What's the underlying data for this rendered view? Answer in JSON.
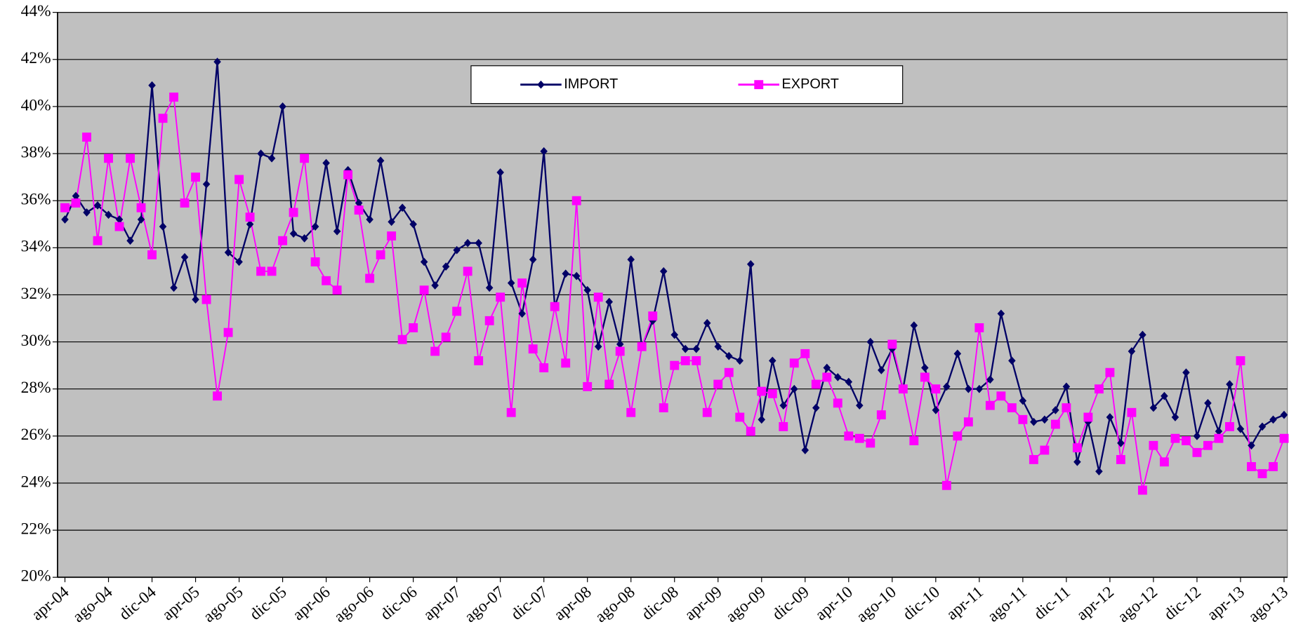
{
  "chart_data": {
    "type": "line",
    "categories": [
      "apr-04",
      null,
      null,
      null,
      "ago-04",
      null,
      null,
      null,
      "dic-04",
      null,
      null,
      null,
      "apr-05",
      null,
      null,
      null,
      "ago-05",
      null,
      null,
      null,
      "dic-05",
      null,
      null,
      null,
      "apr-06",
      null,
      null,
      null,
      "ago-06",
      null,
      null,
      null,
      "dic-06",
      null,
      null,
      null,
      "apr-07",
      null,
      null,
      null,
      "ago-07",
      null,
      null,
      null,
      "dic-07",
      null,
      null,
      null,
      "apr-08",
      null,
      null,
      null,
      "ago-08",
      null,
      null,
      null,
      "dic-08",
      null,
      null,
      null,
      "apr-09",
      null,
      null,
      null,
      "ago-09",
      null,
      null,
      null,
      "dic-09",
      null,
      null,
      null,
      "apr-10",
      null,
      null,
      null,
      "ago-10",
      null,
      null,
      null,
      "dic-10",
      null,
      null,
      null,
      "apr-11",
      null,
      null,
      null,
      "ago-11",
      null,
      null,
      null,
      "dic-11",
      null,
      null,
      null,
      "apr-12",
      null,
      null,
      null,
      "ago-12",
      null,
      null,
      null,
      "dic-12",
      null,
      null,
      null,
      "apr-13",
      null,
      null,
      null,
      "ago-13"
    ],
    "series": [
      {
        "name": "IMPORT",
        "color": "#000066",
        "marker": "diamond",
        "values": [
          35.2,
          36.2,
          35.5,
          35.8,
          35.4,
          35.2,
          34.3,
          35.2,
          40.9,
          34.9,
          32.3,
          33.6,
          31.8,
          36.7,
          41.9,
          33.8,
          33.4,
          35.0,
          38.0,
          37.8,
          40.0,
          34.6,
          34.4,
          34.9,
          37.6,
          34.7,
          37.3,
          35.9,
          35.2,
          37.7,
          35.1,
          35.7,
          35.0,
          33.4,
          32.4,
          33.2,
          33.9,
          34.2,
          34.2,
          32.3,
          37.2,
          32.5,
          31.2,
          33.5,
          38.1,
          31.5,
          32.9,
          32.8,
          32.2,
          29.8,
          31.7,
          29.9,
          33.5,
          29.8,
          30.9,
          33.0,
          30.3,
          29.7,
          29.7,
          30.8,
          29.8,
          29.4,
          29.2,
          33.3,
          26.7,
          29.2,
          27.3,
          28.0,
          25.4,
          27.2,
          28.9,
          28.5,
          28.3,
          27.3,
          30.0,
          28.8,
          29.7,
          28.0,
          30.7,
          28.9,
          27.1,
          28.1,
          29.5,
          28.0,
          28.0,
          28.4,
          31.2,
          29.2,
          27.5,
          26.6,
          26.7,
          27.1,
          28.1,
          24.9,
          26.6,
          24.5,
          26.8,
          25.7,
          29.6,
          30.3,
          27.2,
          27.7,
          26.8,
          28.7,
          26.0,
          27.4,
          26.2,
          28.2,
          26.3,
          25.6,
          26.4,
          26.7,
          26.9
        ]
      },
      {
        "name": "EXPORT",
        "color": "#ff00ff",
        "marker": "square",
        "values": [
          35.7,
          35.9,
          38.7,
          34.3,
          37.8,
          34.9,
          37.8,
          35.7,
          33.7,
          39.5,
          40.4,
          35.9,
          37.0,
          31.8,
          27.7,
          30.4,
          36.9,
          35.3,
          33.0,
          33.0,
          34.3,
          35.5,
          37.8,
          33.4,
          32.6,
          32.2,
          37.1,
          35.6,
          32.7,
          33.7,
          34.5,
          30.1,
          30.6,
          32.2,
          29.6,
          30.2,
          31.3,
          33.0,
          29.2,
          30.9,
          31.9,
          27.0,
          32.5,
          29.7,
          28.9,
          31.5,
          29.1,
          36.0,
          28.1,
          31.9,
          28.2,
          29.6,
          27.0,
          29.8,
          31.1,
          27.2,
          29.0,
          29.2,
          29.2,
          27.0,
          28.2,
          28.7,
          26.8,
          26.2,
          27.9,
          27.8,
          26.4,
          29.1,
          29.5,
          28.2,
          28.5,
          27.4,
          26.0,
          25.9,
          25.7,
          26.9,
          29.9,
          28.0,
          25.8,
          28.5,
          28.0,
          23.9,
          26.0,
          26.6,
          30.6,
          27.3,
          27.7,
          27.2,
          26.7,
          25.0,
          25.4,
          26.5,
          27.2,
          25.5,
          26.8,
          28.0,
          28.7,
          25.0,
          27.0,
          23.7,
          25.6,
          24.9,
          25.9,
          25.8,
          25.3,
          25.6,
          25.9,
          26.4,
          29.2,
          24.7,
          24.4,
          24.7,
          25.9
        ]
      }
    ],
    "ylim": [
      20,
      44
    ],
    "yticks": [
      {
        "value": 20,
        "label": "20%"
      },
      {
        "value": 22,
        "label": "22%"
      },
      {
        "value": 24,
        "label": "24%"
      },
      {
        "value": 26,
        "label": "26%"
      },
      {
        "value": 28,
        "label": "28%"
      },
      {
        "value": 30,
        "label": "30%"
      },
      {
        "value": 32,
        "label": "32%"
      },
      {
        "value": 34,
        "label": "34%"
      },
      {
        "value": 36,
        "label": "36%"
      },
      {
        "value": 38,
        "label": "38%"
      },
      {
        "value": 40,
        "label": "40%"
      },
      {
        "value": 42,
        "label": "42%"
      },
      {
        "value": 44,
        "label": "44%"
      }
    ],
    "grid": true,
    "legend": "top",
    "plot_background": "#c0c0c0"
  }
}
